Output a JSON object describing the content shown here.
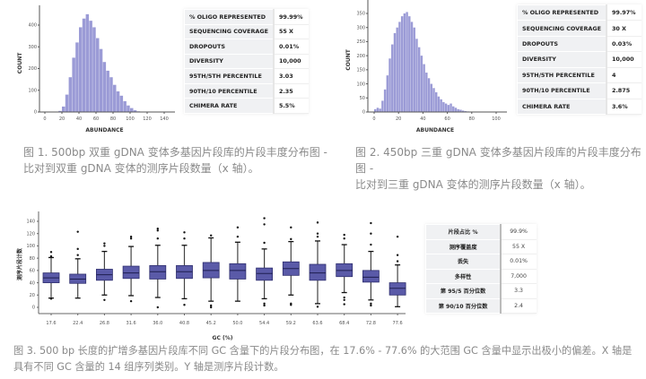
{
  "figure1": {
    "table": [
      [
        "% OLIGO REPRESENTED",
        "99.99%"
      ],
      [
        "SEQUENCING COVERAGE",
        "55 X"
      ],
      [
        "DROPOUTS",
        "0.01%"
      ],
      [
        "DIVERSITY",
        "10,000"
      ],
      [
        "95TH/5TH PERCENTILE",
        "3.03"
      ],
      [
        "90TH/10 PERCENTILE",
        "2.35"
      ],
      [
        "CHIMERA RATE",
        "5.5%"
      ]
    ],
    "caption_line1": "图 1. 500bp 双重 gDNA 变体多基因片段库的片段丰度分布图 -",
    "caption_line2": "比对到双重 gDNA 变体的测序片段数量（x 轴）。"
  },
  "figure2": {
    "table": [
      [
        "% OLIGO REPRESENTED",
        "99.97%"
      ],
      [
        "SEQUENCING COVERAGE",
        "30 X"
      ],
      [
        "DROPOUTS",
        "0.03%"
      ],
      [
        "DIVERSITY",
        "10,000"
      ],
      [
        "95TH/5TH PERCENTILE",
        "4"
      ],
      [
        "90TH/10 PERCENTILE",
        "2.875"
      ],
      [
        "CHIMERA RATE",
        "3.6%"
      ]
    ],
    "caption_line1": "图 2. 450bp 三重 gDNA 变体多基因片段库的片段丰度分布图 -",
    "caption_line2": "比对到三重 gDNA 变体的测序片段数量（x 轴）。"
  },
  "figure3": {
    "table": [
      [
        "片段占比 %",
        "99.9%"
      ],
      [
        "测序覆盖度",
        "55 X"
      ],
      [
        "丢失",
        "0.01%"
      ],
      [
        "多样性",
        "7,000"
      ],
      [
        "第 95/5 百分位数",
        "3.3"
      ],
      [
        "第 90/10 百分位数",
        "2.4"
      ]
    ],
    "caption_line1": "图 3. 500 bp 长度的扩增多基因片段库不同 GC 含量下的片段分布图，在 17.6% - 77.6% 的大范围 GC 含量中显示出极小的偏差。X 轴是",
    "caption_line2": "具有不同 GC 含量的 14 组序列类别。Y 轴是测序片段计数。"
  },
  "chart_data": [
    {
      "type": "bar",
      "xlabel": "ABUNDANCE",
      "ylabel": "COUNT",
      "xlim": [
        0,
        140
      ],
      "ylim": [
        0,
        450
      ],
      "xticks": [
        0,
        20,
        40,
        60,
        80,
        100,
        120,
        140
      ],
      "yticks": [
        0,
        100,
        200,
        300,
        400
      ],
      "color": "#9b9bd6",
      "bin_width": 4,
      "x": [
        16,
        20,
        24,
        28,
        32,
        36,
        40,
        44,
        48,
        52,
        56,
        60,
        64,
        68,
        72,
        76,
        80,
        84,
        88,
        92,
        96,
        100,
        104,
        108
      ],
      "values": [
        5,
        25,
        80,
        160,
        250,
        320,
        390,
        430,
        450,
        420,
        390,
        340,
        290,
        230,
        190,
        160,
        125,
        95,
        75,
        50,
        30,
        18,
        8,
        3
      ]
    },
    {
      "type": "bar",
      "xlabel": "ABUNDANCE",
      "ylabel": "COUNT",
      "xlim": [
        0,
        100
      ],
      "ylim": [
        0,
        370
      ],
      "xticks": [
        0,
        20,
        40,
        60,
        80,
        100
      ],
      "yticks": [
        0,
        50,
        100,
        150,
        200,
        250,
        300,
        350
      ],
      "color": "#9b9bd6",
      "bin_width": 2,
      "x": [
        0,
        2,
        4,
        6,
        8,
        10,
        12,
        14,
        16,
        18,
        20,
        22,
        24,
        26,
        28,
        30,
        32,
        34,
        36,
        38,
        40,
        42,
        44,
        46,
        48,
        50,
        52,
        54,
        56,
        58,
        60,
        62,
        64,
        66,
        68,
        70,
        72,
        74,
        76,
        78
      ],
      "values": [
        10,
        15,
        12,
        40,
        80,
        130,
        190,
        240,
        280,
        300,
        320,
        340,
        350,
        355,
        340,
        320,
        300,
        260,
        230,
        200,
        170,
        140,
        120,
        100,
        85,
        70,
        55,
        45,
        35,
        30,
        25,
        30,
        20,
        15,
        10,
        8,
        5,
        3,
        2,
        1
      ]
    },
    {
      "type": "box",
      "xlabel": "GC (%)",
      "ylabel": "测序片段计数",
      "ylim": [
        0,
        150
      ],
      "yticks": [
        0,
        20,
        40,
        60,
        80,
        100,
        120,
        140
      ],
      "color": "#5a5aa8",
      "categories": [
        "17.6",
        "22.4",
        "26.8",
        "31.6",
        "36.0",
        "40.8",
        "45.2",
        "50.0",
        "54.4",
        "59.2",
        "63.6",
        "68.4",
        "72.8",
        "77.6"
      ],
      "boxes": [
        {
          "min": 15,
          "q1": 40,
          "median": 48,
          "q3": 56,
          "max": 81,
          "outliers": [
            14,
            83,
            90
          ]
        },
        {
          "min": 15,
          "q1": 39,
          "median": 46,
          "q3": 54,
          "max": 79,
          "outliers": [
            85,
            95,
            123
          ]
        },
        {
          "min": 20,
          "q1": 44,
          "median": 53,
          "q3": 62,
          "max": 91,
          "outliers": [
            12,
            100,
            104
          ]
        },
        {
          "min": 19,
          "q1": 47,
          "median": 56,
          "q3": 67,
          "max": 99,
          "outliers": [
            10,
            112,
            115
          ]
        },
        {
          "min": 16,
          "q1": 46,
          "median": 58,
          "q3": 68,
          "max": 101,
          "outliers": [
            0,
            112,
            125,
            128
          ]
        },
        {
          "min": 14,
          "q1": 47,
          "median": 58,
          "q3": 68,
          "max": 101,
          "outliers": [
            4,
            112,
            122
          ]
        },
        {
          "min": 10,
          "q1": 48,
          "median": 60,
          "q3": 73,
          "max": 113,
          "outliers": [
            0,
            3,
            117
          ]
        },
        {
          "min": 10,
          "q1": 46,
          "median": 60,
          "q3": 71,
          "max": 106,
          "outliers": [
            115,
            130
          ]
        },
        {
          "min": 14,
          "q1": 44,
          "median": 55,
          "q3": 64,
          "max": 95,
          "outliers": [
            3,
            6,
            105,
            135,
            145
          ]
        },
        {
          "min": 20,
          "q1": 52,
          "median": 63,
          "q3": 74,
          "max": 107,
          "outliers": [
            4,
            6,
            111,
            130
          ]
        },
        {
          "min": 6,
          "q1": 44,
          "median": 56,
          "q3": 70,
          "max": 108,
          "outliers": [
            1,
            115,
            120,
            138
          ]
        },
        {
          "min": 24,
          "q1": 50,
          "median": 60,
          "q3": 71,
          "max": 102,
          "outliers": [
            5,
            12,
            16,
            112,
            118
          ]
        },
        {
          "min": 12,
          "q1": 41,
          "median": 49,
          "q3": 60,
          "max": 91,
          "outliers": [
            3,
            6,
            102,
            120,
            137
          ]
        },
        {
          "min": 1,
          "q1": 20,
          "median": 31,
          "q3": 40,
          "max": 69,
          "outliers": [
            75,
            85,
            115
          ]
        }
      ]
    }
  ]
}
